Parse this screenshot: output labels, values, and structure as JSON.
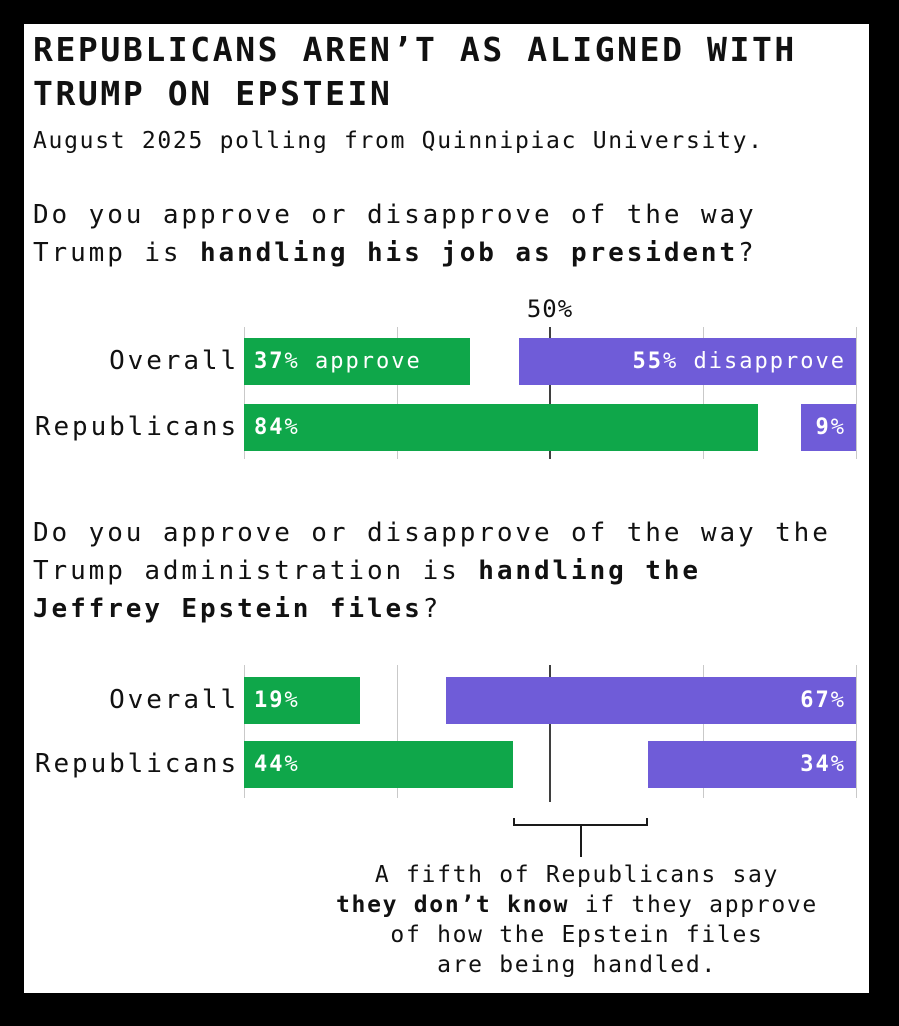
{
  "window": {
    "background": "#000000",
    "card_background": "#ffffff"
  },
  "header": {
    "title": "REPUBLICANS AREN’T AS ALIGNED WITH TRUMP ON EPSTEIN",
    "subtitle": "August 2025 polling from Quinnipiac University."
  },
  "colors": {
    "approve_green": "#0fa74a",
    "disapprove_purple": "#6f5cd8",
    "gridline": "#c9c9c9",
    "center_line": "#3f3f3f",
    "bracket": "#1a1a1a",
    "text": "#111111",
    "bar_text": "#ffffff"
  },
  "chart_data": [
    {
      "type": "bar",
      "orientation": "horizontal",
      "question_lines": [
        [
          {
            "text": "Do you approve or disapprove of the way",
            "bold": false
          }
        ],
        [
          {
            "text": "Trump is ",
            "bold": false
          },
          {
            "text": "handling his job as president",
            "bold": true
          },
          {
            "text": "?",
            "bold": false
          }
        ]
      ],
      "categories": [
        "Overall",
        "Republicans"
      ],
      "axis": {
        "min": 0,
        "max": 100,
        "gridlines": [
          0,
          25,
          50,
          75,
          100
        ],
        "center_line": 50,
        "center_label": "50%",
        "show_center_label": true
      },
      "series": [
        {
          "name": "approve",
          "anchor": "left",
          "color_key": "approve_green",
          "values": [
            37,
            84
          ],
          "bar_labels": [
            [
              {
                "text": "37",
                "bold": true
              },
              {
                "text": "% approve",
                "bold": false
              }
            ],
            [
              {
                "text": "84",
                "bold": true
              },
              {
                "text": "%",
                "bold": false
              }
            ]
          ]
        },
        {
          "name": "disapprove",
          "anchor": "right",
          "color_key": "disapprove_purple",
          "values": [
            55,
            9
          ],
          "bar_labels": [
            [
              {
                "text": "55",
                "bold": true
              },
              {
                "text": "% disapprove",
                "bold": false
              }
            ],
            [
              {
                "text": "9",
                "bold": true
              },
              {
                "text": "%",
                "bold": false
              }
            ]
          ]
        }
      ]
    },
    {
      "type": "bar",
      "orientation": "horizontal",
      "question_lines": [
        [
          {
            "text": "Do you approve or disapprove of the way the",
            "bold": false
          }
        ],
        [
          {
            "text": "Trump administration is ",
            "bold": false
          },
          {
            "text": "handling the",
            "bold": true
          }
        ],
        [
          {
            "text": "Jeffrey Epstein files",
            "bold": true
          },
          {
            "text": "?",
            "bold": false
          }
        ]
      ],
      "categories": [
        "Overall",
        "Republicans"
      ],
      "axis": {
        "min": 0,
        "max": 100,
        "gridlines": [
          0,
          25,
          50,
          75,
          100
        ],
        "center_line": 50,
        "center_label": "50%",
        "show_center_label": false
      },
      "series": [
        {
          "name": "approve",
          "anchor": "left",
          "color_key": "approve_green",
          "values": [
            19,
            44
          ],
          "bar_labels": [
            [
              {
                "text": "19",
                "bold": true
              },
              {
                "text": "%",
                "bold": false
              }
            ],
            [
              {
                "text": "44",
                "bold": true
              },
              {
                "text": "%",
                "bold": false
              }
            ]
          ]
        },
        {
          "name": "disapprove",
          "anchor": "right",
          "color_key": "disapprove_purple",
          "values": [
            67,
            34
          ],
          "bar_labels": [
            [
              {
                "text": "67",
                "bold": true
              },
              {
                "text": "%",
                "bold": false
              }
            ],
            [
              {
                "text": "34",
                "bold": true
              },
              {
                "text": "%",
                "bold": false
              }
            ]
          ]
        }
      ],
      "annotation": {
        "bracket": {
          "start_pct": 44,
          "end_pct": 66
        },
        "lines": [
          [
            {
              "text": "A fifth of Republicans say",
              "bold": false
            }
          ],
          [
            {
              "text": "they don’t know",
              "bold": true
            },
            {
              "text": " if they approve",
              "bold": false
            }
          ],
          [
            {
              "text": "of how the Epstein files",
              "bold": false
            }
          ],
          [
            {
              "text": "are being handled.",
              "bold": false
            }
          ]
        ]
      }
    }
  ]
}
